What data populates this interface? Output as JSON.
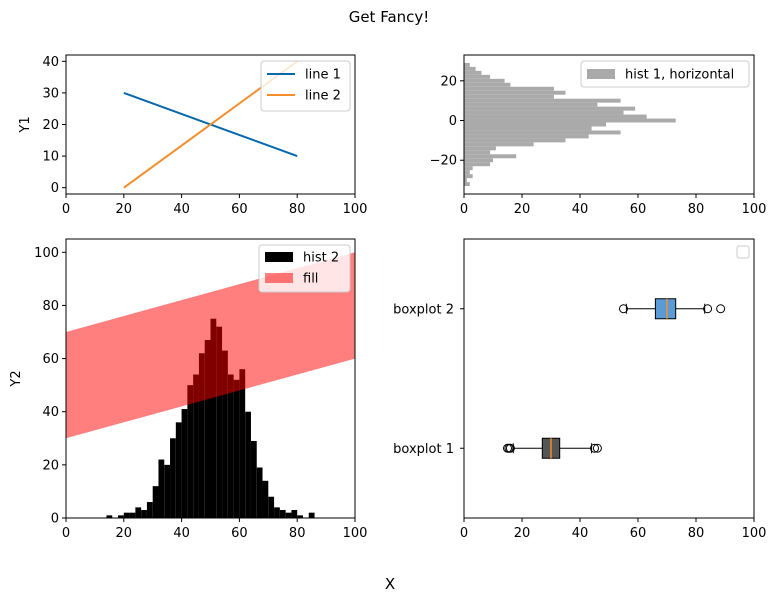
{
  "figure": {
    "suptitle": "Get Fancy!",
    "supxlabel": "X"
  },
  "chart_data": [
    {
      "id": "top-left",
      "type": "line",
      "title": "",
      "xlabel": "",
      "ylabel": "Y1",
      "xlim": [
        0,
        100
      ],
      "ylim": [
        -2,
        42
      ],
      "xticks": [
        0,
        20,
        40,
        60,
        80,
        100
      ],
      "yticks": [
        0,
        10,
        20,
        30,
        40
      ],
      "grid": false,
      "legend": "upper-right",
      "series": [
        {
          "name": "line 1",
          "color": "#0868ac",
          "x": [
            20,
            80
          ],
          "y": [
            30,
            10
          ]
        },
        {
          "name": "line 2",
          "color": "#f28e2b",
          "x": [
            20,
            80
          ],
          "y": [
            0,
            40
          ]
        }
      ]
    },
    {
      "id": "top-right",
      "type": "bar",
      "orientation": "horizontal-histogram",
      "title": "",
      "xlabel": "",
      "ylabel": "",
      "xlim": [
        0,
        100
      ],
      "ylim": [
        -37,
        33
      ],
      "xticks": [
        0,
        20,
        40,
        60,
        80,
        100
      ],
      "yticks": [
        -20,
        0,
        20
      ],
      "grid": false,
      "legend": "upper-right",
      "series": [
        {
          "name": "hist 1, horizontal",
          "color": "#aaaaaa",
          "bin_edges": [
            -33,
            -31,
            -29,
            -27,
            -25,
            -23,
            -21,
            -19,
            -17,
            -15,
            -13,
            -11,
            -9,
            -7,
            -5,
            -3,
            -1,
            1,
            3,
            5,
            7,
            9,
            11,
            13,
            15,
            17,
            19,
            21,
            23,
            25,
            27,
            29,
            31
          ],
          "counts": [
            2,
            1,
            3,
            2,
            3,
            9,
            10,
            18,
            9,
            11,
            24,
            35,
            43,
            54,
            44,
            49,
            73,
            63,
            55,
            59,
            46,
            54,
            31,
            35,
            31,
            16,
            14,
            9,
            6,
            4,
            2,
            0
          ]
        }
      ]
    },
    {
      "id": "bottom-left",
      "type": "bar",
      "orientation": "vertical-histogram-with-fill",
      "title": "",
      "xlabel": "",
      "ylabel": "Y2",
      "xlim": [
        0,
        100
      ],
      "ylim": [
        0,
        105
      ],
      "xticks": [
        0,
        20,
        40,
        60,
        80,
        100
      ],
      "yticks": [
        0,
        20,
        40,
        60,
        80,
        100
      ],
      "grid": false,
      "legend": "upper-right",
      "series": [
        {
          "name": "hist 2",
          "color": "#000000",
          "bin_left": [
            14,
            16,
            18,
            20,
            22,
            24,
            26,
            28,
            30,
            32,
            34,
            36,
            38,
            40,
            42,
            44,
            46,
            48,
            50,
            52,
            54,
            56,
            58,
            60,
            62,
            64,
            66,
            68,
            70,
            72,
            74,
            76,
            78,
            80,
            82,
            84
          ],
          "counts": [
            1,
            0,
            1,
            2,
            2,
            4,
            3,
            6,
            12,
            22,
            20,
            30,
            36,
            41,
            50,
            54,
            62,
            67,
            75,
            72,
            63,
            54,
            52,
            56,
            40,
            29,
            19,
            14,
            8,
            4,
            3,
            2,
            3,
            1,
            0,
            2
          ],
          "bin_width": 2
        },
        {
          "name": "fill",
          "color": "#ff0000",
          "alpha": 0.5,
          "x": [
            0,
            100
          ],
          "y_lower": [
            30,
            60
          ],
          "y_upper": [
            70,
            100
          ]
        }
      ]
    },
    {
      "id": "bottom-right",
      "type": "boxplot",
      "orientation": "horizontal",
      "title": "",
      "xlabel": "",
      "ylabel": "",
      "xlim": [
        0,
        100
      ],
      "ylim": [
        0.5,
        2.5
      ],
      "xticks": [
        0,
        20,
        40,
        60,
        80,
        100
      ],
      "grid": false,
      "legend": "upper-right",
      "categories": [
        "boxplot 1",
        "boxplot 2"
      ],
      "series": [
        {
          "name": "boxplot 1",
          "position": 1,
          "color": "#555555",
          "median_color": "#f28e2b",
          "whislo": 17,
          "q1": 27,
          "med": 30,
          "q3": 33,
          "whishi": 44,
          "fliers": [
            15,
            15.5,
            16,
            45,
            46
          ]
        },
        {
          "name": "boxplot 2",
          "position": 2,
          "color": "#5b9bd5",
          "median_color": "#f28e2b",
          "whislo": 56,
          "q1": 66,
          "med": 70,
          "q3": 73,
          "whishi": 83,
          "fliers": [
            55,
            84,
            88.5
          ]
        }
      ]
    }
  ]
}
